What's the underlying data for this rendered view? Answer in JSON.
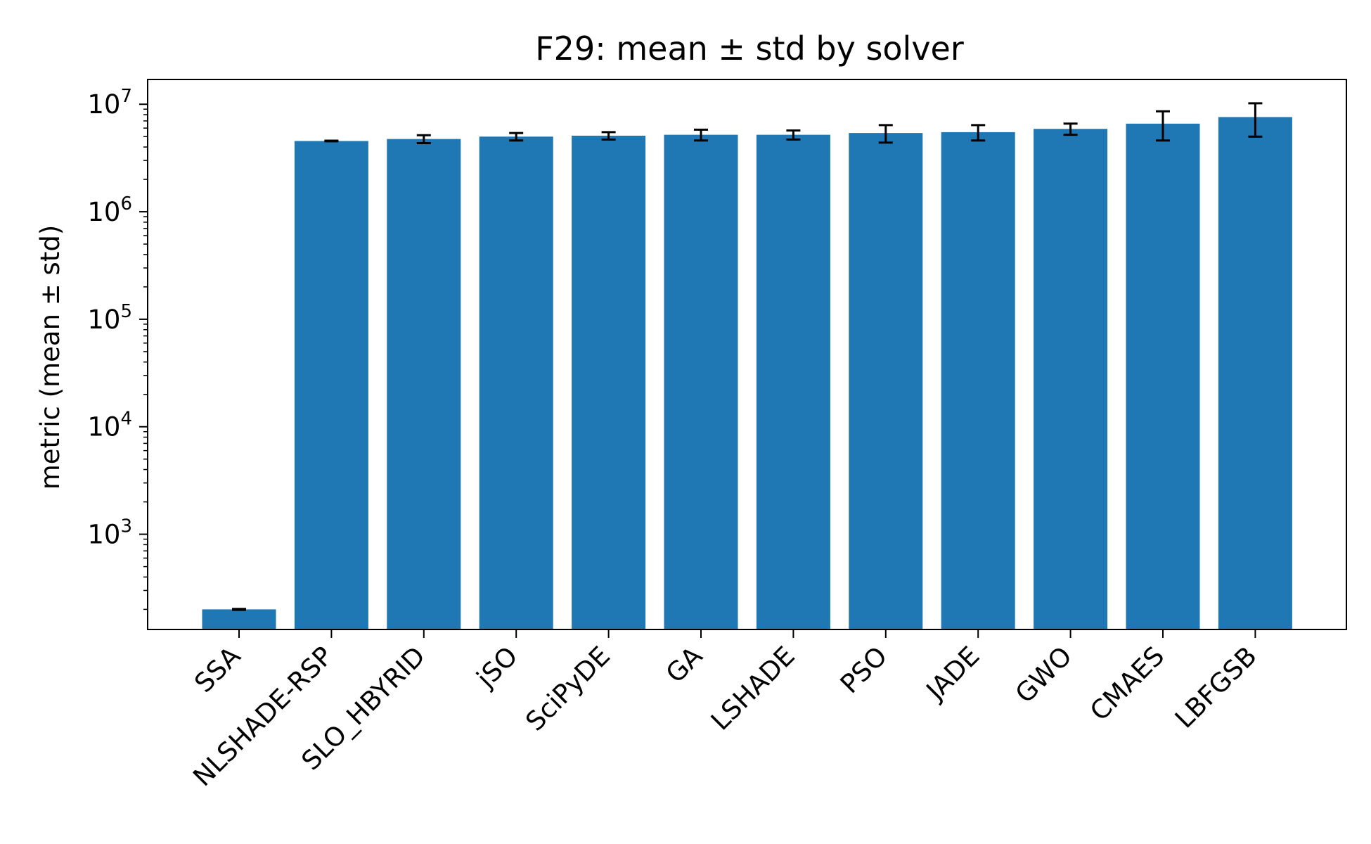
{
  "chart_data": {
    "type": "bar",
    "title": "F29: mean ± std by solver",
    "xlabel": "",
    "ylabel": "metric (mean ± std)",
    "yscale": "log",
    "ylim": [
      130,
      17000000
    ],
    "yticks": [
      {
        "base": "10",
        "exp": "3",
        "value": 1000
      },
      {
        "base": "10",
        "exp": "4",
        "value": 10000
      },
      {
        "base": "10",
        "exp": "5",
        "value": 100000
      },
      {
        "base": "10",
        "exp": "6",
        "value": 1000000
      },
      {
        "base": "10",
        "exp": "7",
        "value": 10000000
      }
    ],
    "bar_color": "#1f77b4",
    "errorbar_color": "#000000",
    "grid": false,
    "legend": "none",
    "categories": [
      "SSA",
      "NLSHADE-RSP",
      "SLO_HBYRID",
      "jSO",
      "SciPyDE",
      "GA",
      "LSHADE",
      "PSO",
      "JADE",
      "GWO",
      "CMAES",
      "LBFGSB"
    ],
    "values": [
      200,
      4550000,
      4750000,
      5000000,
      5100000,
      5200000,
      5200000,
      5400000,
      5500000,
      5900000,
      6600000,
      7600000
    ],
    "std": [
      2,
      30000,
      400000,
      400000,
      400000,
      600000,
      500000,
      1000000,
      900000,
      700000,
      2000000,
      2600000
    ]
  }
}
